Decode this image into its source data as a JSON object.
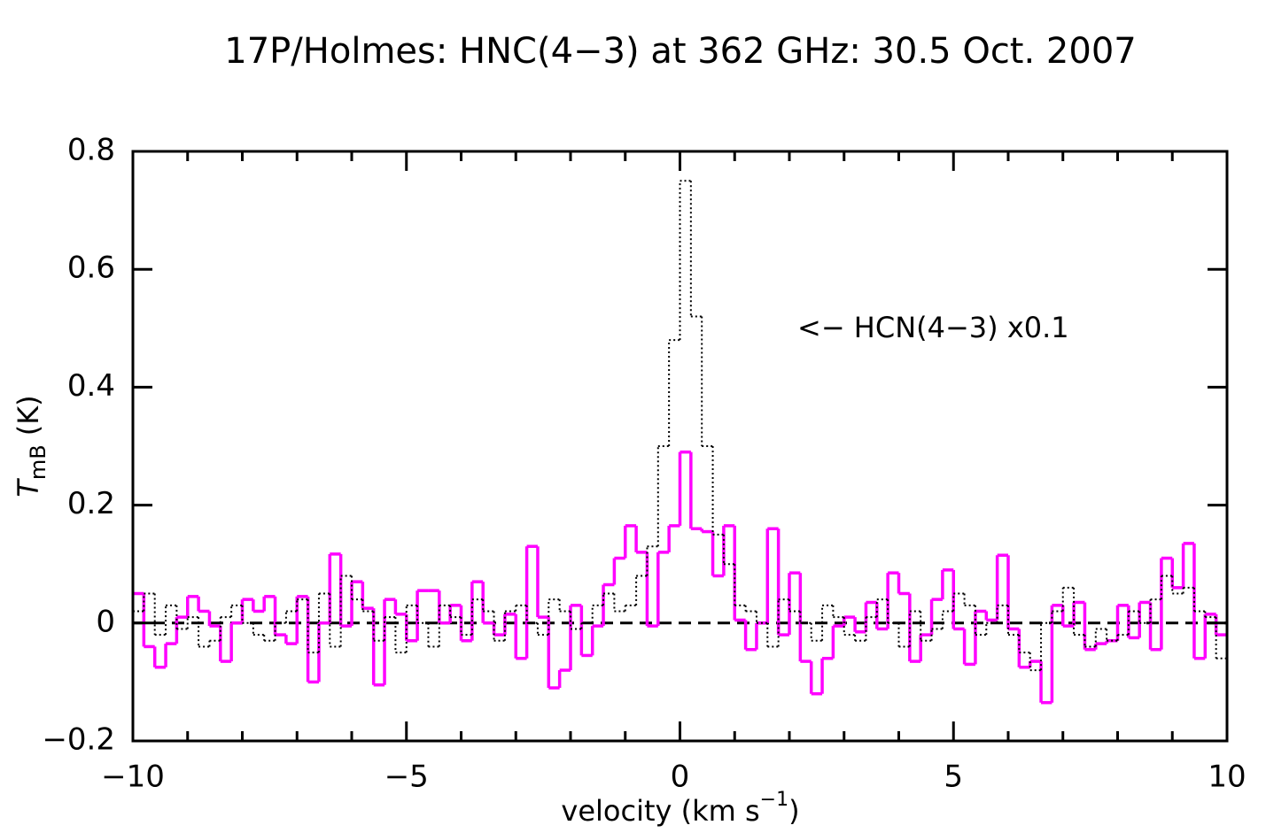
{
  "chart_data": {
    "type": "step",
    "title": "17P/Holmes: HNC(4−3) at 362 GHz: 30.5 Oct. 2007",
    "title_color": "#ff00ff",
    "ylabel_parts": [
      "T",
      "mB",
      "(K)"
    ],
    "xlabel_parts": [
      "velocity (km s",
      "−1",
      ")"
    ],
    "annotation": "<− HCN(4−3) x0.1",
    "xlim": [
      -10,
      10
    ],
    "ylim": [
      -0.2,
      0.8
    ],
    "xticks": [
      {
        "value": -10,
        "label": "−10"
      },
      {
        "value": -5,
        "label": "−5"
      },
      0,
      5,
      10
    ],
    "xminorticks": [
      -9,
      -8,
      -7,
      -6,
      -4,
      -3,
      -2,
      -1,
      1,
      2,
      3,
      4,
      6,
      7,
      8,
      9
    ],
    "yticks": [
      {
        "value": -0.2,
        "label": "−0.2"
      },
      0,
      0.2,
      0.4,
      0.6,
      0.8
    ],
    "zero_line": true,
    "x": [
      -9.9,
      -9.7,
      -9.5,
      -9.3,
      -9.1,
      -8.9,
      -8.7,
      -8.5,
      -8.3,
      -8.1,
      -7.9,
      -7.7,
      -7.5,
      -7.3,
      -7.1,
      -6.9,
      -6.7,
      -6.5,
      -6.3,
      -6.1,
      -5.9,
      -5.7,
      -5.5,
      -5.3,
      -5.1,
      -4.9,
      -4.7,
      -4.5,
      -4.3,
      -4.1,
      -3.9,
      -3.7,
      -3.5,
      -3.3,
      -3.1,
      -2.9,
      -2.7,
      -2.5,
      -2.3,
      -2.1,
      -1.9,
      -1.7,
      -1.5,
      -1.3,
      -1.1,
      -0.9,
      -0.7,
      -0.5,
      -0.3,
      -0.1,
      0.1,
      0.3,
      0.5,
      0.7,
      0.9,
      1.1,
      1.3,
      1.5,
      1.7,
      1.9,
      2.1,
      2.3,
      2.5,
      2.7,
      2.9,
      3.1,
      3.3,
      3.5,
      3.7,
      3.9,
      4.1,
      4.3,
      4.5,
      4.7,
      4.9,
      5.1,
      5.3,
      5.5,
      5.7,
      5.9,
      6.1,
      6.3,
      6.5,
      6.7,
      6.9,
      7.1,
      7.3,
      7.5,
      7.7,
      7.9,
      8.1,
      8.3,
      8.5,
      8.7,
      8.9,
      9.1,
      9.3,
      9.5,
      9.7,
      9.9
    ],
    "series": [
      {
        "name": "HNC(4−3)",
        "color": "#ff00ff",
        "style": "solid",
        "values": [
          0.05,
          -0.04,
          -0.075,
          -0.035,
          0.01,
          0.045,
          0.02,
          -0.005,
          -0.065,
          0.0,
          0.04,
          0.02,
          0.045,
          -0.02,
          -0.035,
          0.045,
          -0.1,
          0.0,
          0.117,
          -0.005,
          0.07,
          0.025,
          -0.105,
          0.04,
          0.015,
          -0.03,
          0.055,
          0.055,
          0.0,
          0.03,
          -0.03,
          0.07,
          0.0,
          -0.02,
          0.015,
          -0.06,
          0.13,
          0.01,
          -0.11,
          -0.08,
          0.03,
          -0.055,
          -0.005,
          0.065,
          0.11,
          0.165,
          0.12,
          -0.005,
          0.12,
          0.165,
          0.29,
          0.16,
          0.155,
          0.08,
          0.165,
          0.005,
          -0.045,
          0.0,
          0.16,
          -0.02,
          0.085,
          -0.065,
          -0.12,
          -0.06,
          -0.005,
          0.01,
          -0.015,
          0.035,
          -0.01,
          0.085,
          0.05,
          -0.065,
          -0.02,
          0.04,
          0.09,
          -0.01,
          -0.07,
          0.02,
          0.005,
          0.115,
          -0.01,
          -0.075,
          -0.065,
          -0.135,
          0.03,
          -0.005,
          0.035,
          -0.045,
          -0.035,
          -0.03,
          0.03,
          -0.025,
          0.035,
          -0.045,
          0.11,
          0.06,
          0.135,
          -0.06,
          0.015,
          -0.02
        ]
      },
      {
        "name": "HCN(4−3) x0.1",
        "color": "#000000",
        "style": "dotted",
        "values": [
          0.02,
          0.05,
          -0.02,
          0.03,
          -0.01,
          0.01,
          -0.04,
          -0.03,
          0.01,
          0.03,
          0.0,
          -0.02,
          -0.03,
          0.0,
          0.02,
          0.04,
          -0.05,
          0.05,
          -0.04,
          0.08,
          0.04,
          0.02,
          -0.03,
          0.01,
          -0.05,
          0.03,
          0.0,
          -0.04,
          0.03,
          0.01,
          -0.02,
          0.04,
          0.02,
          -0.03,
          0.02,
          0.03,
          0.0,
          -0.02,
          0.04,
          0.02,
          -0.01,
          0.0,
          0.03,
          0.05,
          0.02,
          0.03,
          0.08,
          0.13,
          0.3,
          0.48,
          0.75,
          0.52,
          0.3,
          0.15,
          0.1,
          0.03,
          0.02,
          0.0,
          -0.04,
          0.04,
          0.02,
          0.0,
          -0.03,
          0.03,
          0.01,
          -0.02,
          -0.03,
          0.01,
          0.04,
          0.0,
          -0.04,
          0.02,
          -0.03,
          -0.01,
          0.02,
          0.05,
          0.03,
          -0.02,
          0.0,
          0.03,
          -0.02,
          -0.05,
          -0.08,
          0.0,
          0.02,
          0.06,
          -0.02,
          -0.04,
          -0.01,
          -0.03,
          -0.02,
          0.02,
          0.0,
          0.04,
          0.08,
          0.05,
          0.06,
          0.02,
          0.01,
          -0.06
        ]
      }
    ]
  }
}
